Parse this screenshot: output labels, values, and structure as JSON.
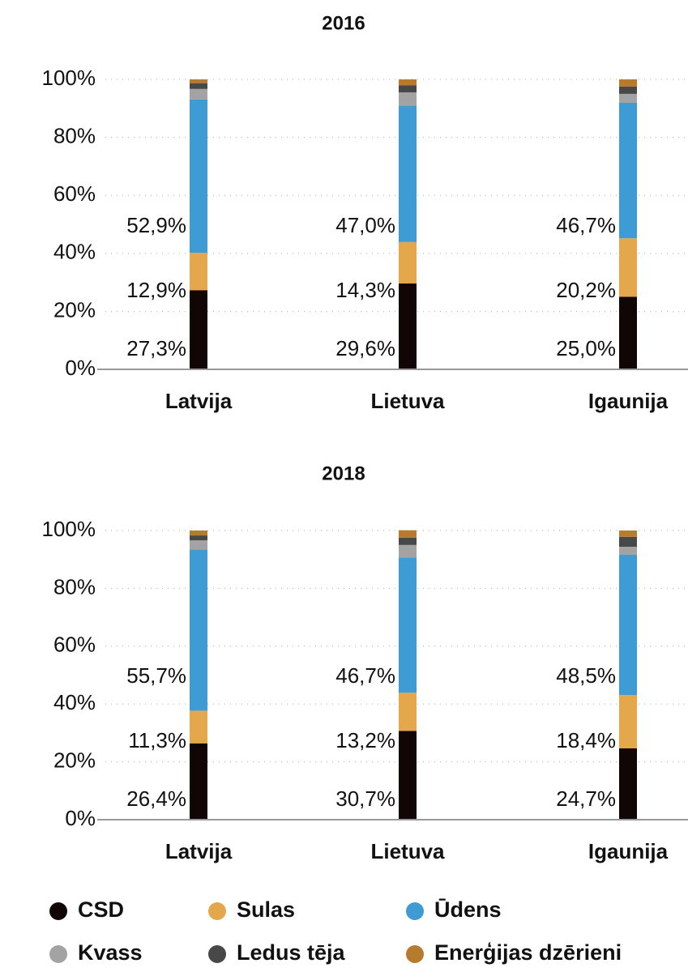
{
  "chart_data": [
    {
      "type": "stacked-bar",
      "title": "2016",
      "categories": [
        "Latvija",
        "Lietuva",
        "Igaunija"
      ],
      "ylim": [
        0,
        100
      ],
      "yticks": [
        {
          "value": 0,
          "label": "0%"
        },
        {
          "value": 20,
          "label": "20%"
        },
        {
          "value": 40,
          "label": "40%"
        },
        {
          "value": 60,
          "label": "60%"
        },
        {
          "value": 80,
          "label": "80%"
        },
        {
          "value": 100,
          "label": "100%"
        }
      ],
      "grid": true,
      "series": [
        {
          "name": "CSD",
          "color": "#120505",
          "values": [
            27.3,
            29.6,
            25.0
          ],
          "value_labels": [
            "27,3%",
            "29,6%",
            "25,0%"
          ]
        },
        {
          "name": "Sulas",
          "color": "#e4a74b",
          "values": [
            12.9,
            14.3,
            20.2
          ],
          "value_labels": [
            "12,9%",
            "14,3%",
            "20,2%"
          ]
        },
        {
          "name": "Ūdens",
          "color": "#3f9bd4",
          "values": [
            52.9,
            47.0,
            46.7
          ],
          "value_labels": [
            "52,9%",
            "47,0%",
            "46,7%"
          ]
        },
        {
          "name": "Kvass",
          "color": "#a3a3a3",
          "values": [
            3.6,
            4.6,
            3.1
          ]
        },
        {
          "name": "Ledus tēja",
          "color": "#484848",
          "values": [
            2.0,
            2.5,
            2.5
          ]
        },
        {
          "name": "Enerģijas dzērieni",
          "color": "#b67b2d",
          "values": [
            1.3,
            2.0,
            2.5
          ]
        }
      ]
    },
    {
      "type": "stacked-bar",
      "title": "2018",
      "categories": [
        "Latvija",
        "Lietuva",
        "Igaunija"
      ],
      "ylim": [
        0,
        100
      ],
      "yticks": [
        {
          "value": 0,
          "label": "0%"
        },
        {
          "value": 20,
          "label": "20%"
        },
        {
          "value": 40,
          "label": "40%"
        },
        {
          "value": 60,
          "label": "60%"
        },
        {
          "value": 80,
          "label": "80%"
        },
        {
          "value": 100,
          "label": "100%"
        }
      ],
      "grid": true,
      "series": [
        {
          "name": "CSD",
          "color": "#120505",
          "values": [
            26.4,
            30.7,
            24.7
          ],
          "value_labels": [
            "26,4%",
            "30,7%",
            "24,7%"
          ]
        },
        {
          "name": "Sulas",
          "color": "#e4a74b",
          "values": [
            11.3,
            13.2,
            18.4
          ],
          "value_labels": [
            "11,3%",
            "13,2%",
            "18,4%"
          ]
        },
        {
          "name": "Ūdens",
          "color": "#3f9bd4",
          "values": [
            55.7,
            46.7,
            48.5
          ],
          "value_labels": [
            "55,7%",
            "46,7%",
            "48,5%"
          ]
        },
        {
          "name": "Kvass",
          "color": "#a3a3a3",
          "values": [
            3.2,
            4.4,
            2.8
          ]
        },
        {
          "name": "Ledus tēja",
          "color": "#484848",
          "values": [
            1.7,
            2.5,
            3.4
          ]
        },
        {
          "name": "Enerģijas dzērieni",
          "color": "#b67b2d",
          "values": [
            1.7,
            2.6,
            2.2
          ]
        }
      ]
    }
  ]
}
